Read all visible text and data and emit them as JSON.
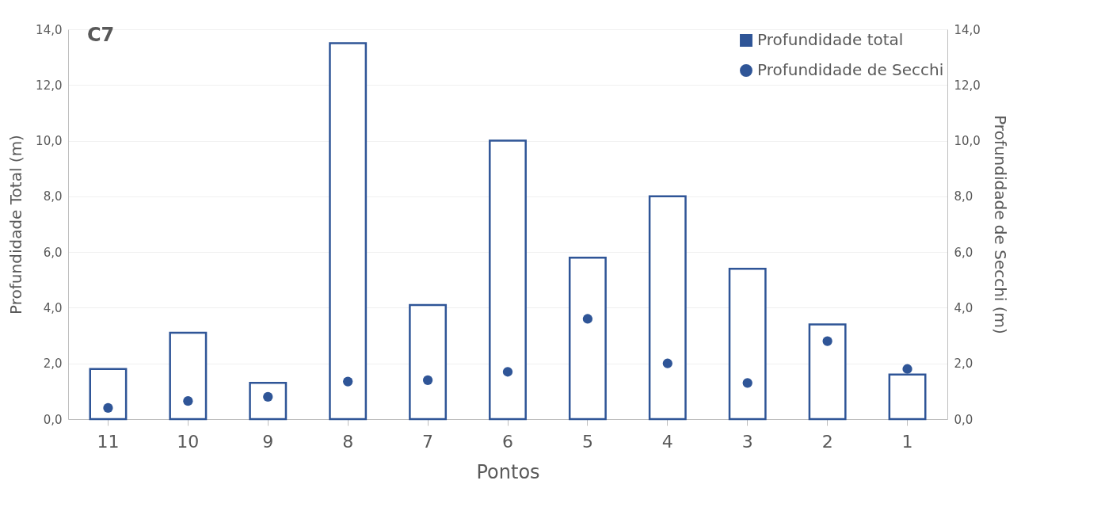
{
  "chart_data": {
    "type": "bar",
    "xlabel": "Pontos",
    "ylabel": "Profundidade Total (m)",
    "y2label": "Profundidade de Secchi (m)",
    "annotations": [
      "C7"
    ],
    "categories": [
      "11",
      "10",
      "9",
      "8",
      "7",
      "6",
      "5",
      "4",
      "3",
      "2",
      "1"
    ],
    "series": [
      {
        "name": "Profundidade total",
        "color": "#2f5597",
        "values": [
          1.8,
          3.1,
          1.3,
          13.5,
          4.1,
          10.0,
          5.8,
          8.0,
          5.4,
          3.4,
          1.6
        ]
      },
      {
        "name": "Profundidade de Secchi",
        "type": "scatter",
        "axis": "y2",
        "marker": "circle",
        "color": "#2f5597",
        "values": [
          0.4,
          0.65,
          0.8,
          1.35,
          1.4,
          1.7,
          3.6,
          2.0,
          1.3,
          2.8,
          1.8
        ]
      }
    ],
    "ylim": [
      0,
      14
    ],
    "yticks": [
      {
        "value": 0,
        "label": "0,0"
      },
      {
        "value": 2,
        "label": "2,0"
      },
      {
        "value": 4,
        "label": "4,0"
      },
      {
        "value": 6,
        "label": "6,0"
      },
      {
        "value": 8,
        "label": "8,0"
      },
      {
        "value": 10,
        "label": "10,0"
      },
      {
        "value": 12,
        "label": "12,0"
      },
      {
        "value": 14,
        "label": "14,0"
      }
    ],
    "y2lim": [
      0,
      14
    ],
    "y2ticks": [
      {
        "value": 0,
        "label": "0,0"
      },
      {
        "value": 2,
        "label": "2,0"
      },
      {
        "value": 4,
        "label": "4,0"
      },
      {
        "value": 6,
        "label": "6,0"
      },
      {
        "value": 8,
        "label": "8,0"
      },
      {
        "value": 10,
        "label": "10,0"
      },
      {
        "value": 12,
        "label": "12,0"
      },
      {
        "value": 14,
        "label": "14,0"
      }
    ],
    "grid": "y",
    "legend": "top right"
  }
}
